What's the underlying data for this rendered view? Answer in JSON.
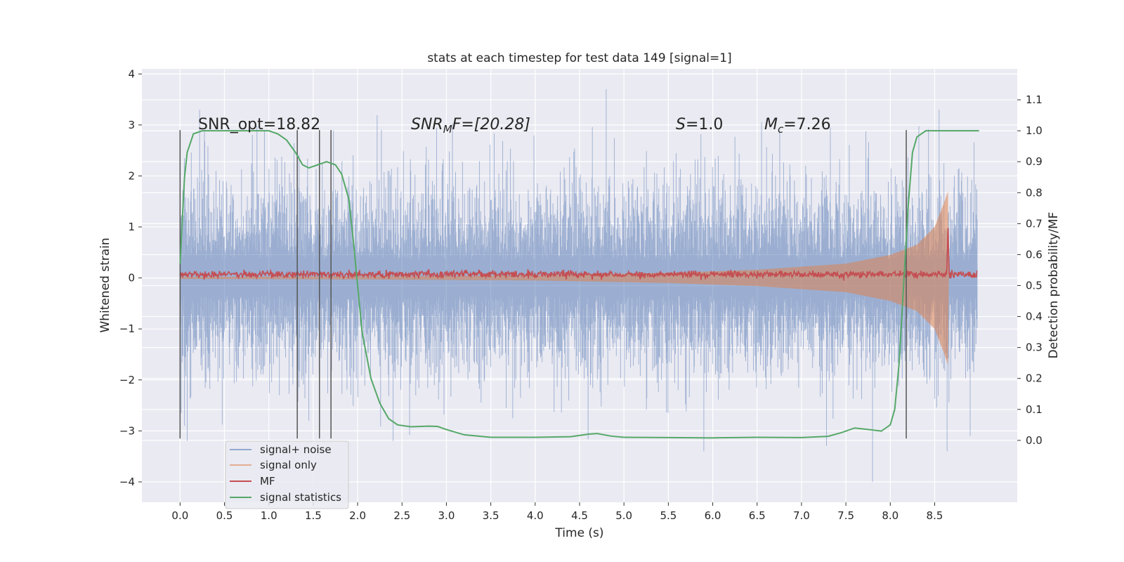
{
  "chart_data": {
    "type": "line",
    "title": "stats at each timestep for test data 149 [signal=1]",
    "xlabel": "Time (s)",
    "ylabel": "Whitened strain",
    "y2label": "Detection probability/MF",
    "xlim": [
      -0.43,
      9.43
    ],
    "ylim": [
      -4.4,
      4.1
    ],
    "y2lim": [
      -0.2,
      1.2
    ],
    "x_ticks": [
      "0.0",
      "0.5",
      "1.0",
      "1.5",
      "2.0",
      "2.5",
      "3.0",
      "3.5",
      "4.0",
      "4.5",
      "5.0",
      "5.5",
      "6.0",
      "6.5",
      "7.0",
      "7.5",
      "8.0",
      "8.5"
    ],
    "y_ticks": [
      "4",
      "3",
      "2",
      "1",
      "0",
      "−1",
      "−2",
      "−3",
      "−4"
    ],
    "y2_ticks": [
      "1.1",
      "1.0",
      "0.9",
      "0.8",
      "0.7",
      "0.6",
      "0.5",
      "0.4",
      "0.3",
      "0.2",
      "0.1",
      "0.0"
    ],
    "grid": true,
    "legend_position": "lower-left",
    "colors": {
      "noise": "#4c72b0",
      "signal": "#dd8452",
      "mf": "#c44e52",
      "stat": "#55a868",
      "background": "#eaeaf2",
      "vlines": "#555555"
    },
    "annotations": {
      "snr_opt": "SNR_opt=18.82",
      "snr_mf": "SNR",
      "snr_mf_sub": "M",
      "snr_mf_tail": "F=[20.28]",
      "s_label": "S",
      "s_value": "=1.0",
      "mc_label": "M",
      "mc_sub": "c",
      "mc_value": "=7.26"
    },
    "vertical_lines_x": [
      0.0,
      1.32,
      1.57,
      1.7,
      8.18
    ],
    "series": [
      {
        "name": "signal+ noise",
        "axis": "left",
        "x_range": [
          0.0,
          8.98
        ],
        "envelope_typical": 1.6,
        "extreme_points": [
          {
            "x": 0.05,
            "y": -2.9
          },
          {
            "x": 0.08,
            "y": -3.2
          },
          {
            "x": 0.22,
            "y": 3.3
          },
          {
            "x": 0.95,
            "y": 2.9
          },
          {
            "x": 1.45,
            "y": -2.8
          },
          {
            "x": 2.4,
            "y": -3.2
          },
          {
            "x": 4.8,
            "y": 3.7
          },
          {
            "x": 5.9,
            "y": -3.4
          },
          {
            "x": 7.8,
            "y": -4.0
          },
          {
            "x": 8.55,
            "y": 3.3
          },
          {
            "x": 8.64,
            "y": -3.4
          },
          {
            "x": 8.9,
            "y": -3.1
          }
        ]
      },
      {
        "name": "signal only",
        "axis": "left",
        "amplitude_points": [
          {
            "x": 0.0,
            "a": 0.02
          },
          {
            "x": 2.0,
            "a": 0.03
          },
          {
            "x": 4.0,
            "a": 0.05
          },
          {
            "x": 5.5,
            "a": 0.1
          },
          {
            "x": 6.5,
            "a": 0.16
          },
          {
            "x": 7.5,
            "a": 0.28
          },
          {
            "x": 8.0,
            "a": 0.45
          },
          {
            "x": 8.3,
            "a": 0.65
          },
          {
            "x": 8.5,
            "a": 1.0
          },
          {
            "x": 8.6,
            "a": 1.45
          },
          {
            "x": 8.65,
            "a": 1.7
          },
          {
            "x": 8.66,
            "a": 0.0
          }
        ]
      },
      {
        "name": "MF",
        "axis": "left",
        "baseline": 0.07,
        "peak": {
          "x": 8.65,
          "y": 1.0
        }
      },
      {
        "name": "signal statistics",
        "axis": "right",
        "points": [
          [
            0.0,
            0.57
          ],
          [
            0.05,
            0.85
          ],
          [
            0.08,
            0.93
          ],
          [
            0.15,
            0.99
          ],
          [
            0.25,
            1.0
          ],
          [
            0.6,
            1.0
          ],
          [
            1.0,
            1.0
          ],
          [
            1.1,
            0.99
          ],
          [
            1.2,
            0.97
          ],
          [
            1.3,
            0.93
          ],
          [
            1.38,
            0.89
          ],
          [
            1.45,
            0.88
          ],
          [
            1.55,
            0.89
          ],
          [
            1.65,
            0.9
          ],
          [
            1.75,
            0.89
          ],
          [
            1.82,
            0.86
          ],
          [
            1.9,
            0.78
          ],
          [
            1.95,
            0.65
          ],
          [
            2.0,
            0.5
          ],
          [
            2.05,
            0.35
          ],
          [
            2.15,
            0.2
          ],
          [
            2.25,
            0.12
          ],
          [
            2.35,
            0.07
          ],
          [
            2.45,
            0.05
          ],
          [
            2.6,
            0.044
          ],
          [
            2.8,
            0.046
          ],
          [
            2.9,
            0.045
          ],
          [
            3.0,
            0.035
          ],
          [
            3.2,
            0.018
          ],
          [
            3.5,
            0.01
          ],
          [
            4.0,
            0.01
          ],
          [
            4.4,
            0.012
          ],
          [
            4.6,
            0.02
          ],
          [
            4.7,
            0.022
          ],
          [
            4.85,
            0.014
          ],
          [
            5.0,
            0.01
          ],
          [
            5.5,
            0.009
          ],
          [
            6.0,
            0.008
          ],
          [
            6.5,
            0.01
          ],
          [
            7.0,
            0.009
          ],
          [
            7.3,
            0.013
          ],
          [
            7.45,
            0.025
          ],
          [
            7.6,
            0.04
          ],
          [
            7.75,
            0.035
          ],
          [
            7.9,
            0.03
          ],
          [
            8.0,
            0.05
          ],
          [
            8.05,
            0.1
          ],
          [
            8.1,
            0.25
          ],
          [
            8.15,
            0.5
          ],
          [
            8.2,
            0.75
          ],
          [
            8.25,
            0.93
          ],
          [
            8.3,
            0.98
          ],
          [
            8.4,
            1.0
          ],
          [
            9.0,
            1.0
          ]
        ]
      }
    ]
  }
}
